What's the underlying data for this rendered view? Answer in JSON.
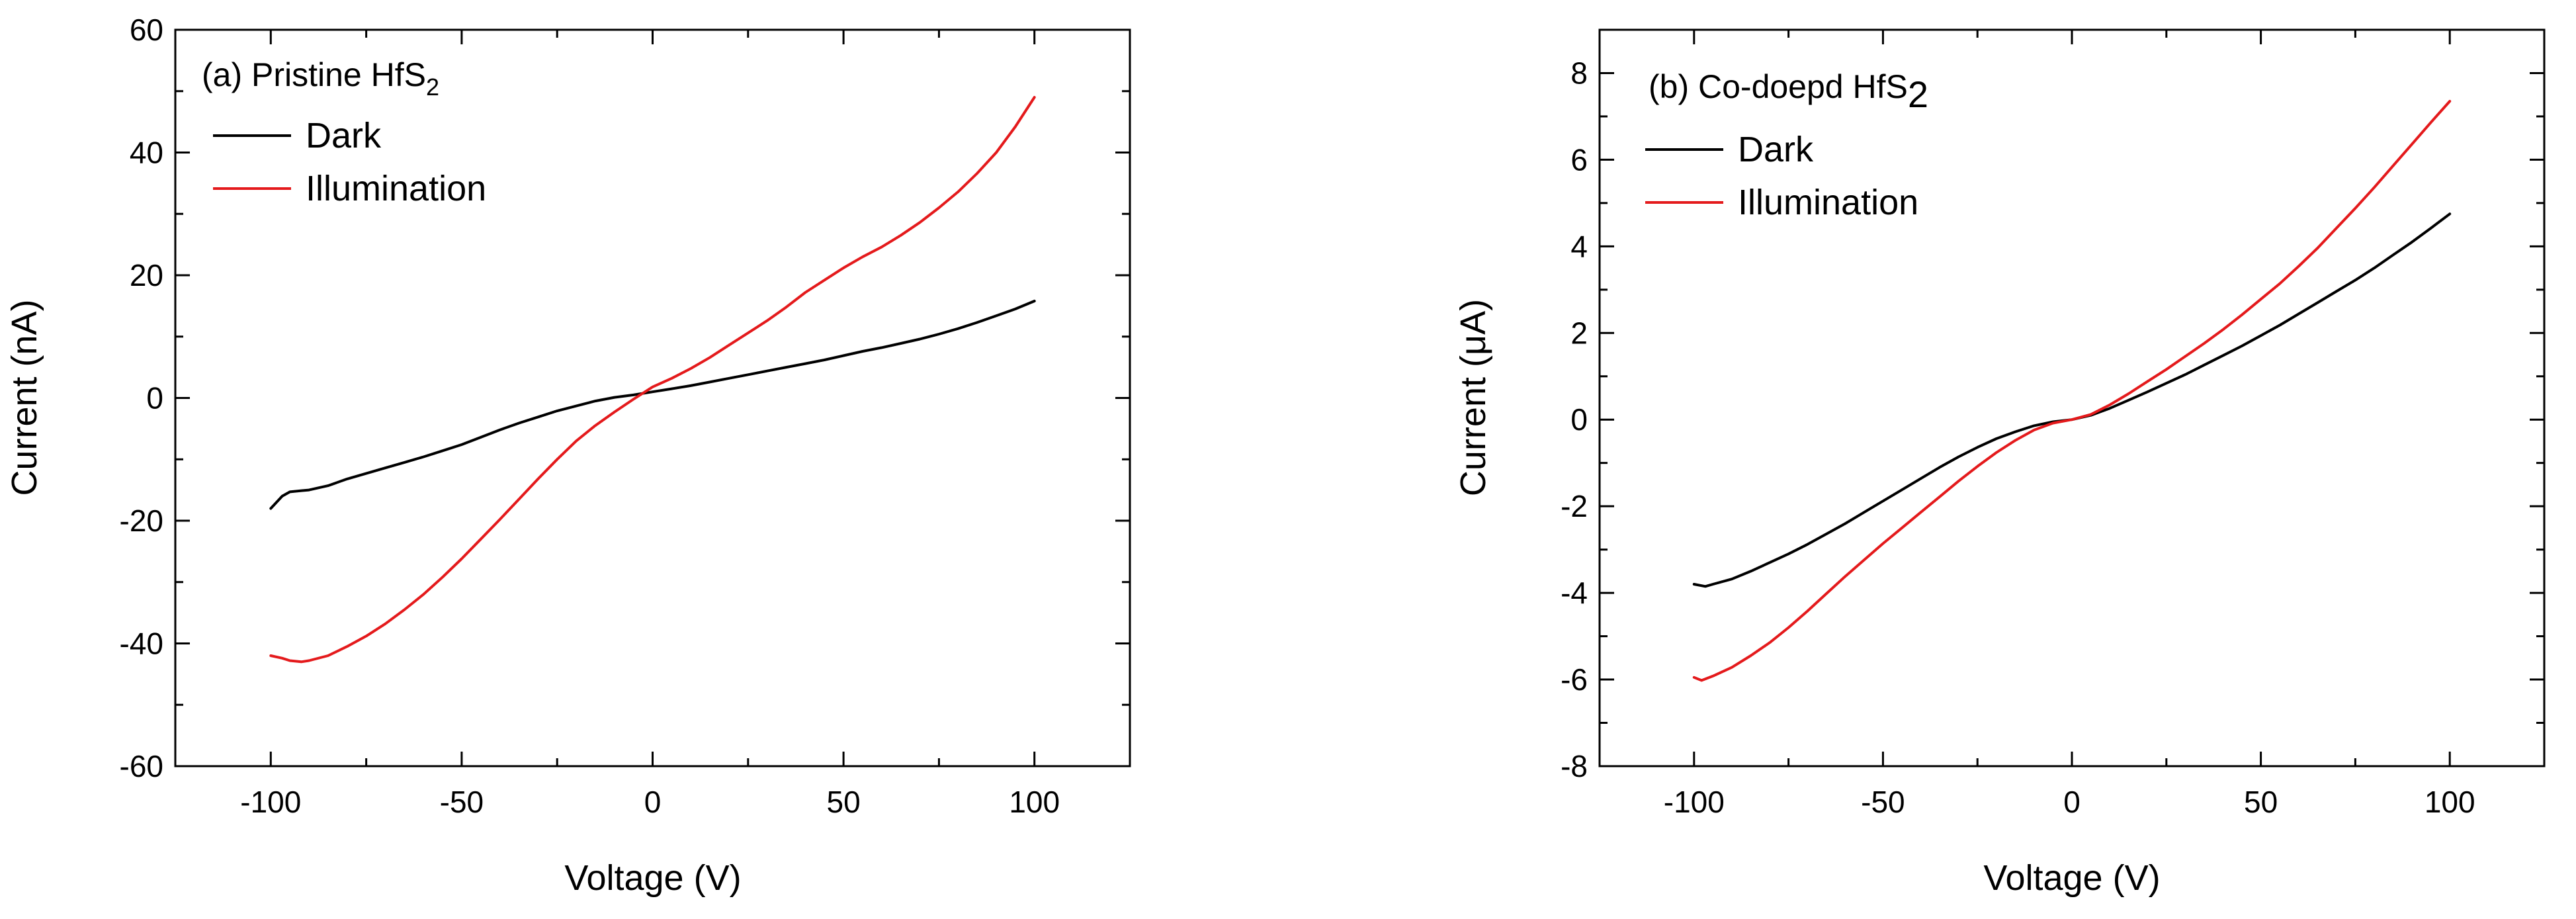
{
  "chart_data": [
    {
      "type": "line",
      "title": "(a) Pristine HfS",
      "title_subscript": "2",
      "xlabel": "Voltage (V)",
      "ylabel": "Current (nA)",
      "xlim": [
        -125,
        125
      ],
      "ylim": [
        -60,
        60
      ],
      "xticks": [
        -100,
        -50,
        0,
        50,
        100
      ],
      "xtick_labels": [
        "-100",
        "-50",
        "0",
        "50",
        "100"
      ],
      "yticks": [
        -60,
        -40,
        -20,
        0,
        20,
        40,
        60
      ],
      "ytick_labels": [
        "-60",
        "-40",
        "-20",
        "0",
        "20",
        "40",
        "60"
      ],
      "grid": false,
      "legend_position": "top-left",
      "series": [
        {
          "name": "Dark",
          "color": "#000000",
          "x": [
            -100,
            -97,
            -95,
            -92,
            -90,
            -85,
            -80,
            -75,
            -70,
            -65,
            -60,
            -55,
            -50,
            -45,
            -40,
            -35,
            -30,
            -25,
            -20,
            -15,
            -10,
            -5,
            0,
            5,
            10,
            15,
            20,
            25,
            30,
            35,
            40,
            45,
            50,
            55,
            60,
            65,
            70,
            75,
            80,
            85,
            90,
            95,
            100
          ],
          "values": [
            -18,
            -16,
            -15.3,
            -15.1,
            -15,
            -14.3,
            -13.2,
            -12.3,
            -11.4,
            -10.5,
            -9.6,
            -8.6,
            -7.6,
            -6.4,
            -5.2,
            -4.1,
            -3.1,
            -2.1,
            -1.3,
            -0.5,
            0.1,
            0.5,
            1,
            1.5,
            2,
            2.6,
            3.2,
            3.8,
            4.4,
            5,
            5.6,
            6.2,
            6.9,
            7.6,
            8.2,
            8.9,
            9.6,
            10.4,
            11.3,
            12.3,
            13.4,
            14.5,
            15.8
          ]
        },
        {
          "name": "Illumination",
          "color": "#e41a1c",
          "x": [
            -100,
            -97,
            -95,
            -92,
            -90,
            -85,
            -80,
            -75,
            -70,
            -65,
            -60,
            -55,
            -50,
            -45,
            -40,
            -35,
            -30,
            -25,
            -20,
            -15,
            -10,
            -5,
            0,
            5,
            10,
            15,
            20,
            25,
            30,
            35,
            40,
            45,
            50,
            55,
            60,
            65,
            70,
            75,
            80,
            85,
            90,
            95,
            100
          ],
          "values": [
            -42,
            -42.4,
            -42.8,
            -43,
            -42.8,
            -42,
            -40.5,
            -38.8,
            -36.8,
            -34.5,
            -32,
            -29.2,
            -26.2,
            -23,
            -19.8,
            -16.5,
            -13.2,
            -10,
            -7,
            -4.5,
            -2.3,
            -0.2,
            1.8,
            3.2,
            4.8,
            6.6,
            8.6,
            10.6,
            12.6,
            14.8,
            17.2,
            19.2,
            21.2,
            23,
            24.6,
            26.5,
            28.6,
            31,
            33.6,
            36.6,
            40,
            44.2,
            49
          ]
        }
      ]
    },
    {
      "type": "line",
      "title": "(b) Co-doepd HfS",
      "title_subscript": "2",
      "xlabel": "Voltage (V)",
      "ylabel": "Current (μA)",
      "xlim": [
        -125,
        125
      ],
      "ylim": [
        -8,
        9
      ],
      "xticks": [
        -100,
        -50,
        0,
        50,
        100
      ],
      "xtick_labels": [
        "-100",
        "-50",
        "0",
        "50",
        "100"
      ],
      "yticks": [
        -8,
        -6,
        -4,
        -2,
        0,
        2,
        4,
        6,
        8
      ],
      "ytick_labels": [
        "-8",
        "-6",
        "-4",
        "-2",
        "0",
        "2",
        "4",
        "6",
        "8"
      ],
      "grid": false,
      "legend_position": "top-left",
      "series": [
        {
          "name": "Dark",
          "color": "#000000",
          "x": [
            -100,
            -97,
            -95,
            -90,
            -85,
            -80,
            -75,
            -70,
            -65,
            -60,
            -55,
            -50,
            -45,
            -40,
            -35,
            -30,
            -25,
            -20,
            -15,
            -10,
            -5,
            0,
            5,
            10,
            15,
            20,
            25,
            30,
            35,
            40,
            45,
            50,
            55,
            60,
            65,
            70,
            75,
            80,
            85,
            90,
            95,
            100
          ],
          "values": [
            -3.8,
            -3.85,
            -3.8,
            -3.68,
            -3.5,
            -3.3,
            -3.1,
            -2.88,
            -2.64,
            -2.4,
            -2.14,
            -1.88,
            -1.62,
            -1.36,
            -1.1,
            -0.86,
            -0.64,
            -0.44,
            -0.28,
            -0.14,
            -0.05,
            0,
            0.1,
            0.26,
            0.45,
            0.64,
            0.84,
            1.04,
            1.26,
            1.48,
            1.7,
            1.94,
            2.18,
            2.44,
            2.7,
            2.96,
            3.22,
            3.5,
            3.8,
            4.1,
            4.42,
            4.75
          ]
        },
        {
          "name": "Illumination",
          "color": "#e41a1c",
          "x": [
            -100,
            -98,
            -95,
            -90,
            -85,
            -80,
            -75,
            -70,
            -65,
            -60,
            -55,
            -50,
            -45,
            -40,
            -35,
            -30,
            -25,
            -20,
            -15,
            -10,
            -5,
            0,
            5,
            10,
            15,
            20,
            25,
            30,
            35,
            40,
            45,
            50,
            55,
            60,
            65,
            70,
            75,
            80,
            85,
            90,
            95,
            100
          ],
          "values": [
            -5.95,
            -6.02,
            -5.92,
            -5.72,
            -5.45,
            -5.15,
            -4.8,
            -4.42,
            -4.02,
            -3.62,
            -3.24,
            -2.86,
            -2.5,
            -2.14,
            -1.78,
            -1.42,
            -1.08,
            -0.76,
            -0.48,
            -0.24,
            -0.08,
            0,
            0.12,
            0.34,
            0.6,
            0.88,
            1.16,
            1.46,
            1.76,
            2.08,
            2.42,
            2.78,
            3.14,
            3.54,
            3.96,
            4.42,
            4.88,
            5.36,
            5.86,
            6.36,
            6.86,
            7.35
          ]
        }
      ]
    }
  ]
}
